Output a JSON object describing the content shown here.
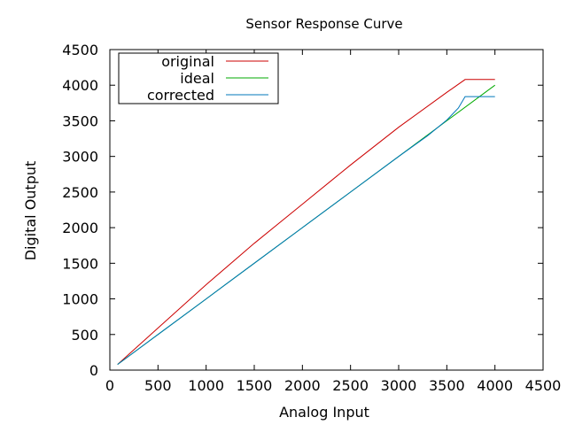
{
  "chart_data": {
    "type": "line",
    "title": "Sensor Response Curve",
    "xlabel": "Analog Input",
    "ylabel": "Digital Output",
    "xlim": [
      0,
      4500
    ],
    "ylim": [
      0,
      4500
    ],
    "xticks": [
      0,
      500,
      1000,
      1500,
      2000,
      2500,
      3000,
      3500,
      4000,
      4500
    ],
    "yticks": [
      0,
      500,
      1000,
      1500,
      2000,
      2500,
      3000,
      3500,
      4000,
      4500
    ],
    "grid": false,
    "legend_position": "top-left",
    "series": [
      {
        "name": "original",
        "color": "#cc0000",
        "x": [
          80,
          500,
          1000,
          1500,
          2000,
          2500,
          3000,
          3500,
          3690,
          4000
        ],
        "y": [
          80,
          590,
          1200,
          1780,
          2330,
          2880,
          3410,
          3900,
          4080,
          4080
        ]
      },
      {
        "name": "ideal",
        "color": "#00aa00",
        "x": [
          80,
          500,
          1000,
          1500,
          2000,
          2500,
          3000,
          3500,
          4000
        ],
        "y": [
          80,
          500,
          1000,
          1500,
          2000,
          2500,
          3000,
          3500,
          4000
        ]
      },
      {
        "name": "corrected",
        "color": "#0077bb",
        "x": [
          80,
          500,
          1000,
          1500,
          2000,
          2500,
          3000,
          3300,
          3500,
          3620,
          3690,
          4000
        ],
        "y": [
          80,
          500,
          1000,
          1500,
          2000,
          2500,
          3000,
          3290,
          3510,
          3680,
          3840,
          3840
        ]
      }
    ]
  }
}
